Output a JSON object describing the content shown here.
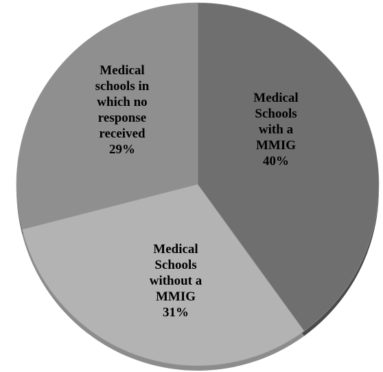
{
  "chart_data": {
    "type": "pie",
    "title": "",
    "start_angle_deg": 0,
    "direction": "clockwise",
    "slices": [
      {
        "label_lines": [
          "Medical",
          "Schools",
          "with a",
          "MMIG",
          "40%"
        ],
        "category": "Medical Schools with a MMIG",
        "value": 40,
        "color": "#6f6f6f",
        "side_color": "#4a4a4a"
      },
      {
        "label_lines": [
          "Medical",
          "Schools",
          "without a",
          "MMIG",
          "31%"
        ],
        "category": "Medical Schools without a MMIG",
        "value": 31,
        "color": "#b3b3b3",
        "side_color": "#8c8c8c"
      },
      {
        "label_lines": [
          "Medical",
          "schools in",
          "which no",
          "response",
          "received",
          "29%"
        ],
        "category": "Medical schools in which no response received",
        "value": 29,
        "color": "#8f8f8f",
        "side_color": "#6a6a6a"
      }
    ]
  }
}
